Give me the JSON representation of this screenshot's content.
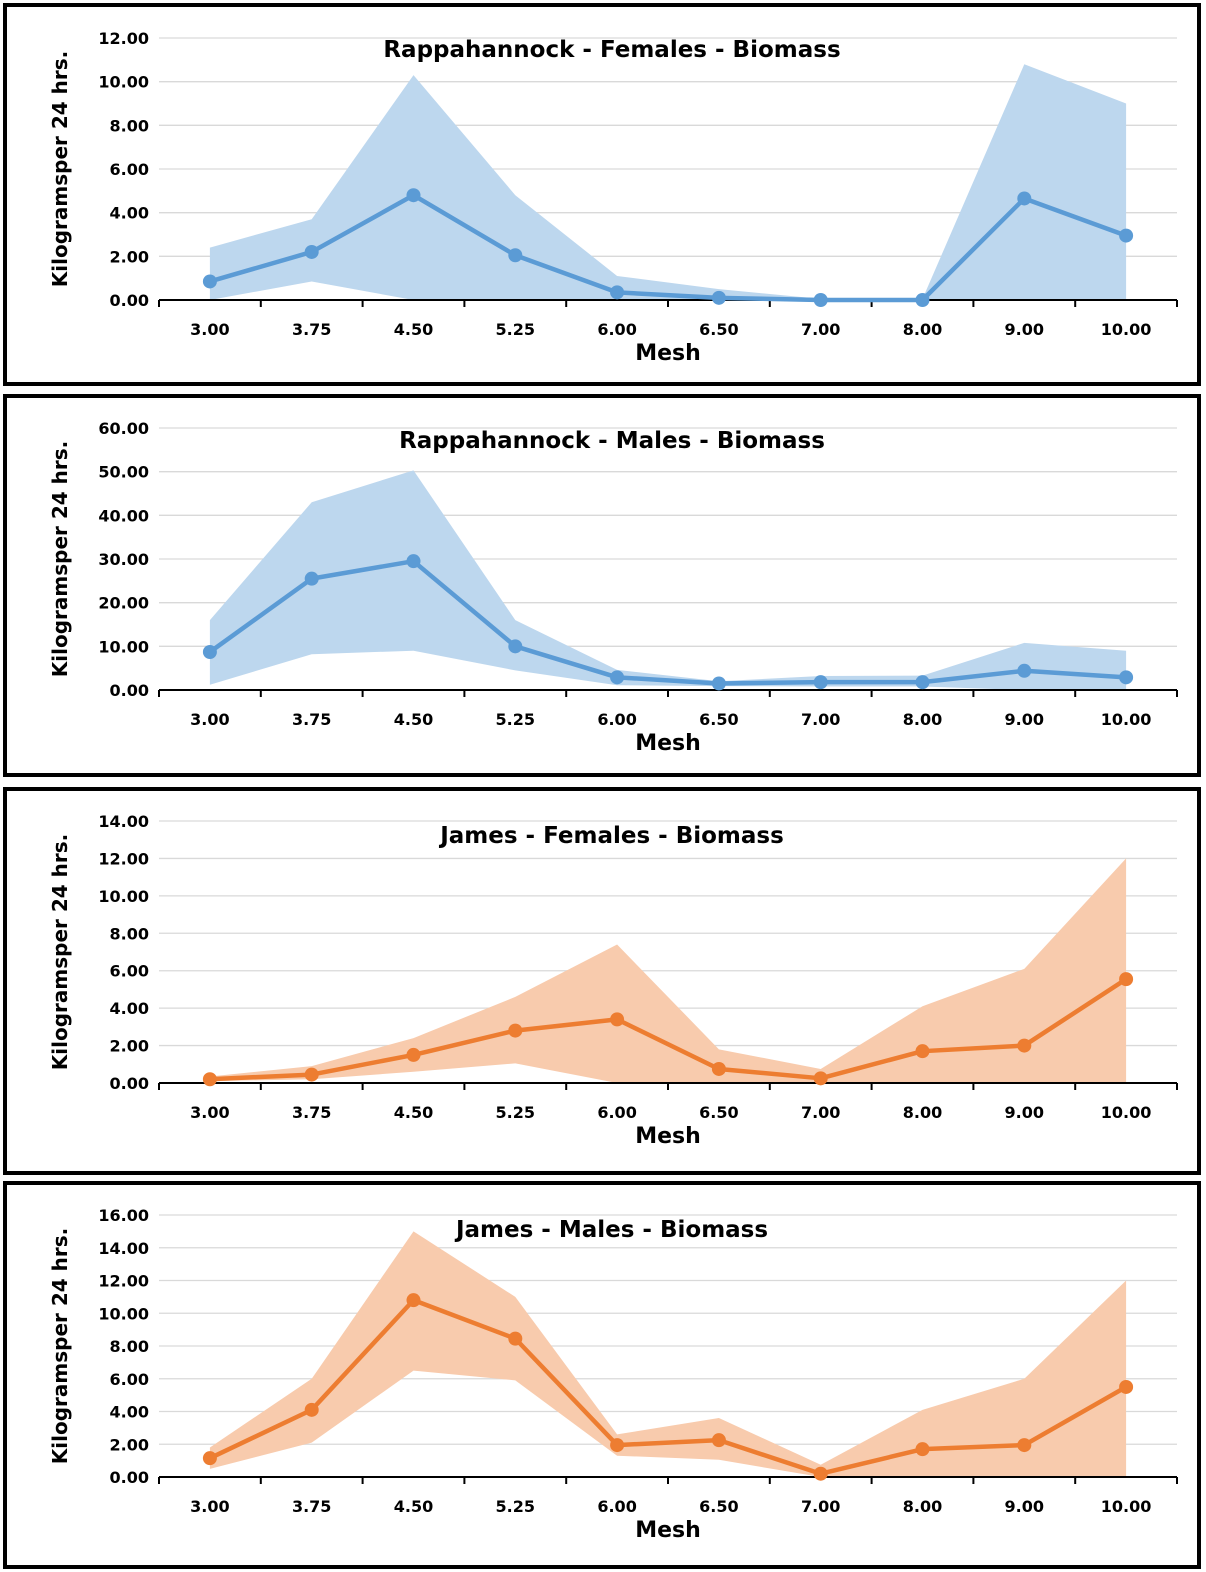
{
  "chart_data": [
    {
      "type": "line",
      "title": "Rappahannock  - Females - Biomass",
      "xlabel": "Mesh",
      "ylabel": "Kilogramsper 24 hrs.",
      "categories": [
        "3.00",
        "3.75",
        "4.50",
        "5.25",
        "6.00",
        "6.50",
        "7.00",
        "8.00",
        "9.00",
        "10.00"
      ],
      "yticks": [
        "0.00",
        "2.00",
        "4.00",
        "6.00",
        "8.00",
        "10.00",
        "12.00"
      ],
      "ylim": [
        0,
        12
      ],
      "grid": true,
      "color": "#5b9bd5",
      "band_color": "#bdd7ee",
      "series": [
        {
          "values": [
            0.85,
            2.2,
            4.8,
            2.05,
            0.35,
            0.1,
            0.0,
            0.0,
            4.65,
            2.95
          ]
        }
      ],
      "band_upper": [
        2.4,
        3.7,
        10.3,
        4.8,
        1.1,
        0.5,
        0.05,
        0.05,
        10.8,
        9.0
      ],
      "band_lower": [
        0.0,
        0.85,
        0.0,
        0.0,
        0.0,
        0.0,
        0.0,
        0.0,
        0.0,
        0.0
      ]
    },
    {
      "type": "line",
      "title": "Rappahannock  - Males - Biomass",
      "xlabel": "Mesh",
      "ylabel": "Kilogramsper 24 hrs.",
      "categories": [
        "3.00",
        "3.75",
        "4.50",
        "5.25",
        "6.00",
        "6.50",
        "7.00",
        "8.00",
        "9.00",
        "10.00"
      ],
      "yticks": [
        "0.00",
        "10.00",
        "20.00",
        "30.00",
        "40.00",
        "50.00",
        "60.00"
      ],
      "ylim": [
        0,
        60
      ],
      "grid": true,
      "color": "#5b9bd5",
      "band_color": "#bdd7ee",
      "series": [
        {
          "values": [
            8.7,
            25.5,
            29.5,
            10.0,
            2.9,
            1.5,
            1.8,
            1.8,
            4.4,
            2.9
          ]
        }
      ],
      "band_upper": [
        16.0,
        43.0,
        50.3,
        16.0,
        4.6,
        2.0,
        3.2,
        3.3,
        10.8,
        9.0
      ],
      "band_lower": [
        1.2,
        8.2,
        9.0,
        4.5,
        1.1,
        0.9,
        0.8,
        0.8,
        0.0,
        0.0
      ]
    },
    {
      "type": "line",
      "title": "James - Females - Biomass",
      "xlabel": "Mesh",
      "ylabel": "Kilogramsper 24 hrs.",
      "categories": [
        "3.00",
        "3.75",
        "4.50",
        "5.25",
        "6.00",
        "6.50",
        "7.00",
        "8.00",
        "9.00",
        "10.00"
      ],
      "yticks": [
        "0.00",
        "2.00",
        "4.00",
        "6.00",
        "8.00",
        "10.00",
        "12.00",
        "14.00"
      ],
      "ylim": [
        0,
        14
      ],
      "grid": true,
      "color": "#ed7d31",
      "band_color": "#f8cbad",
      "series": [
        {
          "values": [
            0.2,
            0.45,
            1.5,
            2.8,
            3.4,
            0.75,
            0.25,
            1.7,
            2.0,
            5.55
          ]
        }
      ],
      "band_upper": [
        0.35,
        0.9,
        2.4,
        4.6,
        7.4,
        1.8,
        0.75,
        4.1,
        6.1,
        12.0
      ],
      "band_lower": [
        0.1,
        0.2,
        0.6,
        1.05,
        0.0,
        0.0,
        0.0,
        0.0,
        0.0,
        0.0
      ]
    },
    {
      "type": "line",
      "title": "James - Males - Biomass",
      "xlabel": "Mesh",
      "ylabel": "Kilogramsper 24 hrs.",
      "categories": [
        "3.00",
        "3.75",
        "4.50",
        "5.25",
        "6.00",
        "6.50",
        "7.00",
        "8.00",
        "9.00",
        "10.00"
      ],
      "yticks": [
        "0.00",
        "2.00",
        "4.00",
        "6.00",
        "8.00",
        "10.00",
        "12.00",
        "14.00",
        "16.00"
      ],
      "ylim": [
        0,
        16
      ],
      "grid": true,
      "color": "#ed7d31",
      "band_color": "#f8cbad",
      "series": [
        {
          "values": [
            1.15,
            4.1,
            10.8,
            8.45,
            1.95,
            2.25,
            0.2,
            1.7,
            1.95,
            5.5
          ]
        }
      ],
      "band_upper": [
        1.8,
        6.0,
        15.0,
        11.0,
        2.6,
        3.6,
        0.75,
        4.1,
        6.0,
        12.0
      ],
      "band_lower": [
        0.5,
        2.1,
        6.5,
        5.9,
        1.3,
        1.05,
        0.0,
        0.0,
        0.0,
        0.0
      ]
    }
  ]
}
